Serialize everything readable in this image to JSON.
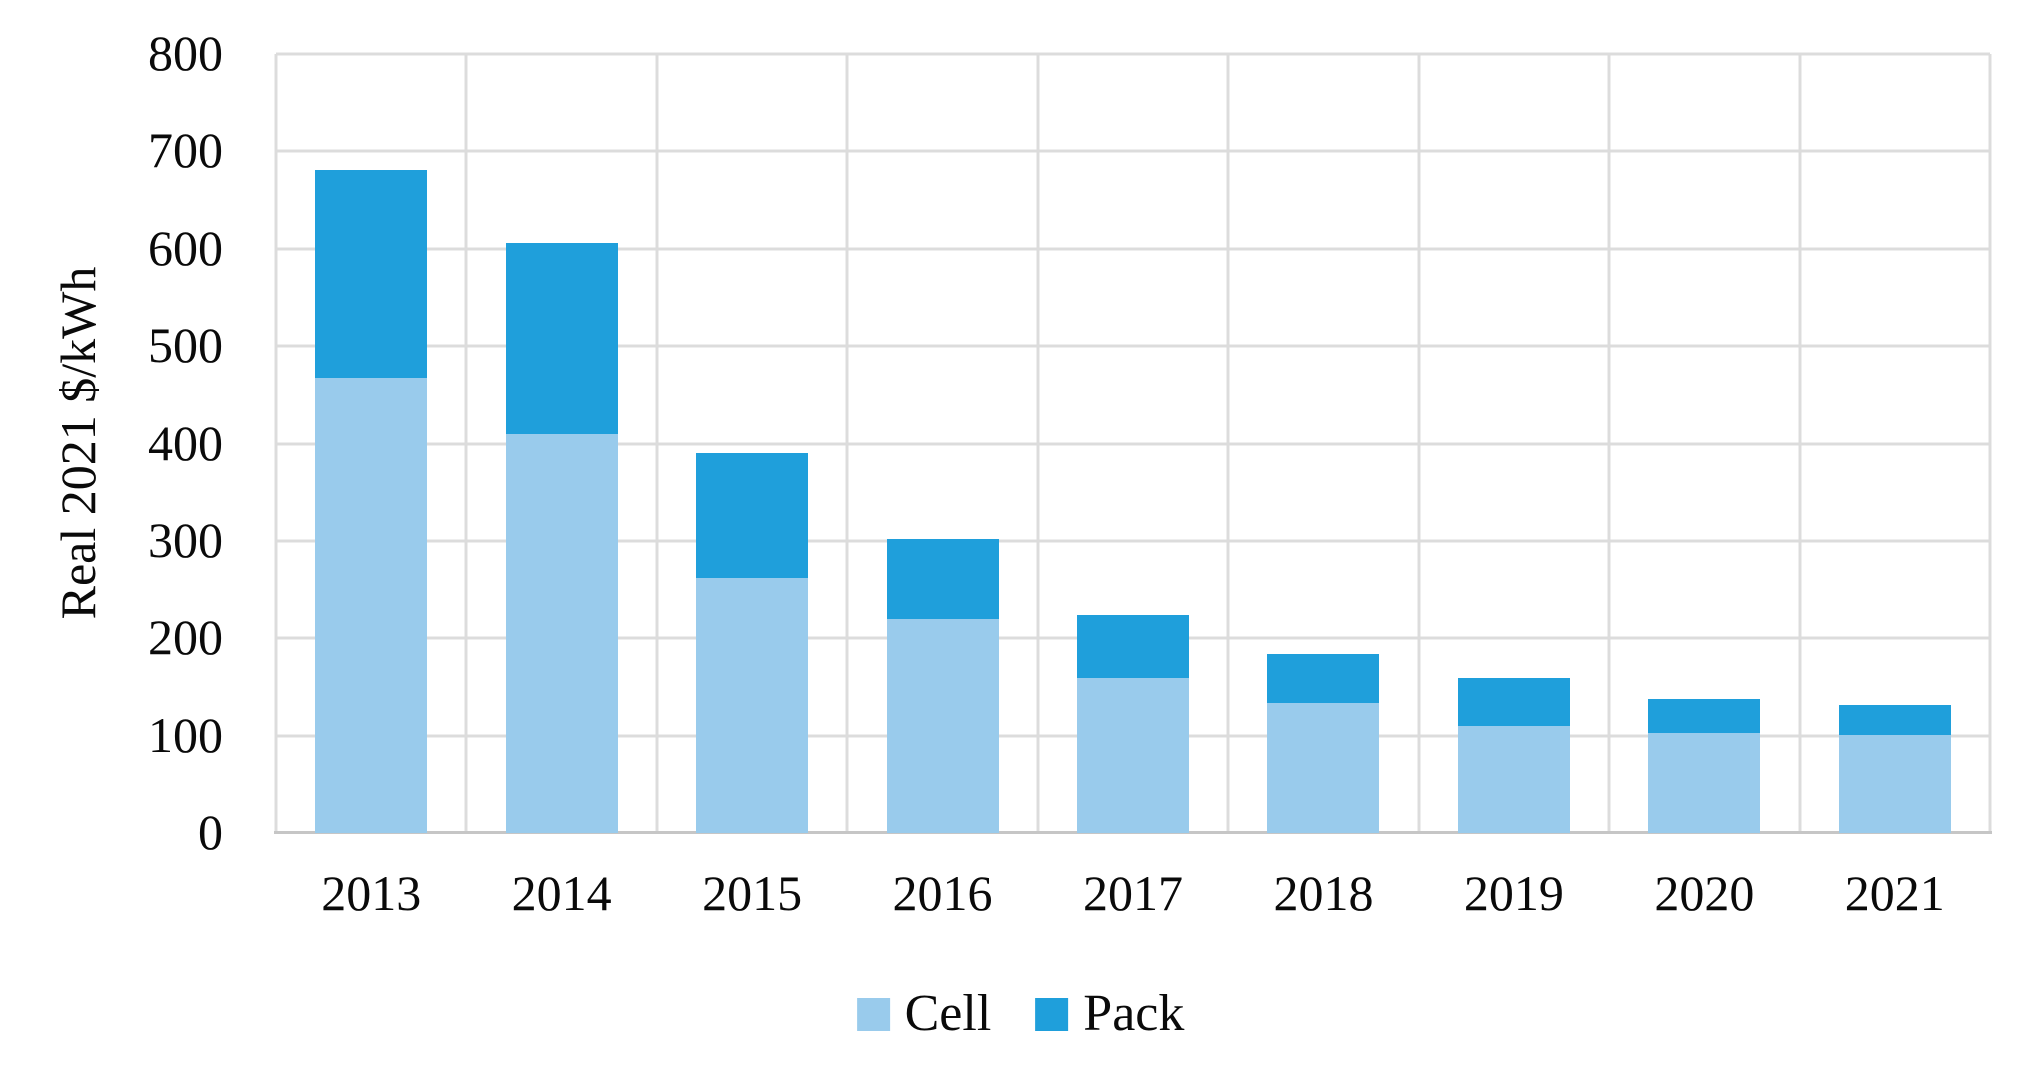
{
  "chart_data": {
    "type": "bar",
    "stacked": true,
    "title": "",
    "xlabel": "",
    "ylabel": "Real 2021 $/kWh",
    "categories": [
      "2013",
      "2014",
      "2015",
      "2016",
      "2017",
      "2018",
      "2019",
      "2020",
      "2021"
    ],
    "series": [
      {
        "name": "Cell",
        "color": "#99cbec",
        "values": [
          467,
          410,
          262,
          220,
          159,
          134,
          110,
          103,
          101
        ]
      },
      {
        "name": "Pack",
        "color": "#1f9fdb",
        "values": [
          214,
          196,
          128,
          82,
          65,
          50,
          49,
          35,
          30
        ]
      }
    ],
    "totals": [
      681,
      606,
      390,
      302,
      224,
      184,
      159,
      138,
      131
    ],
    "ylim": [
      0,
      800
    ],
    "yticks": [
      0,
      100,
      200,
      300,
      400,
      500,
      600,
      700,
      800
    ],
    "grid": "horizontal and vertical gridlines on",
    "gridline_color": "#dcdcdc",
    "legend_position": "bottom-center"
  }
}
